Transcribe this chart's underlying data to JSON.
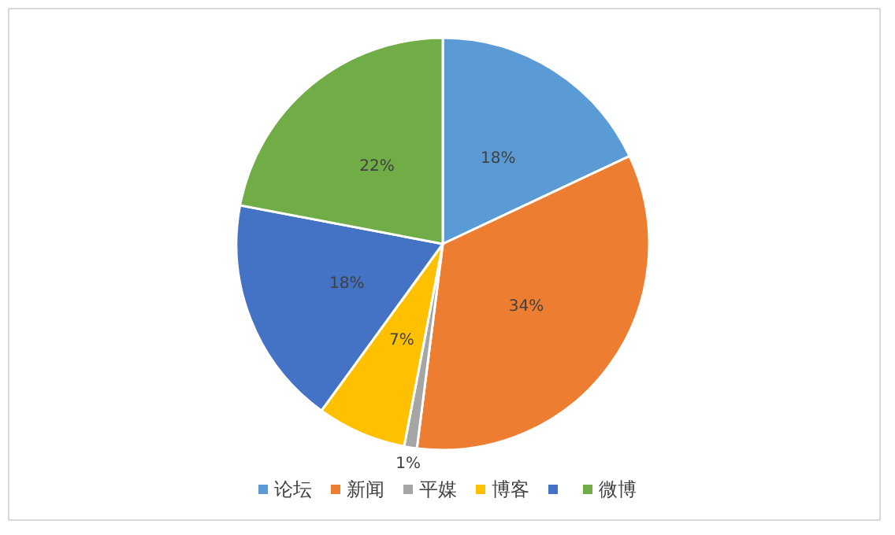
{
  "chart_data": {
    "type": "pie",
    "categories": [
      "论坛",
      "新闻",
      "平媒",
      "博客",
      null,
      "微博"
    ],
    "values": [
      18,
      34,
      1,
      7,
      18,
      22
    ],
    "value_labels": [
      "18%",
      "34%",
      "1%",
      "7%",
      "18%",
      "22%"
    ],
    "colors": [
      "#5b9bd5",
      "#ed7d31",
      "#a5a5a5",
      "#ffc000",
      "#4472c4",
      "#70ad47"
    ],
    "legend": "bottom"
  }
}
